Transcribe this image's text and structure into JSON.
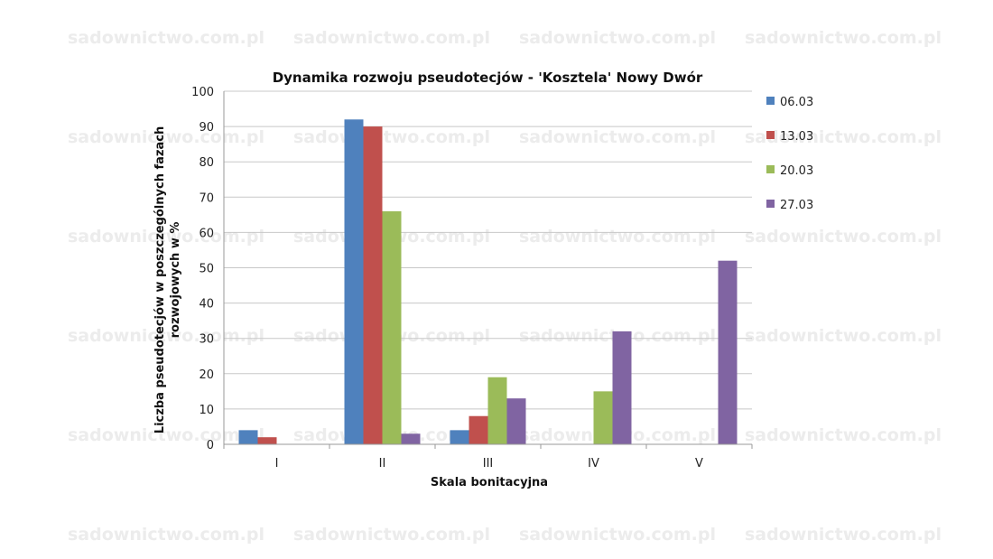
{
  "watermark": "sadownictwo.com.pl",
  "chart_data": {
    "type": "bar",
    "title": "Dynamika rozwoju pseudotecjów - 'Kosztela' Nowy Dwór",
    "xlabel": "Skala bonitacyjna",
    "ylabel_line1": "Liczba pseudotecjów w poszczególnych fazach",
    "ylabel_line2": "rozwojowych w %",
    "categories": [
      "I",
      "II",
      "III",
      "IV",
      "V"
    ],
    "ylim": [
      0,
      100
    ],
    "yticks": [
      "0",
      "10",
      "20",
      "30",
      "40",
      "50",
      "60",
      "70",
      "80",
      "90",
      "100"
    ],
    "grid": true,
    "legend_position": "right",
    "series": [
      {
        "name": "06.03",
        "color": "#4F81BD",
        "values": [
          4,
          92,
          4,
          0,
          0
        ]
      },
      {
        "name": "13.03",
        "color": "#C0504D",
        "values": [
          2,
          90,
          8,
          0,
          0
        ]
      },
      {
        "name": "20.03",
        "color": "#9BBB59",
        "values": [
          0,
          66,
          19,
          15,
          0
        ]
      },
      {
        "name": "27.03",
        "color": "#8064A2",
        "values": [
          0,
          3,
          13,
          32,
          52
        ]
      }
    ]
  }
}
